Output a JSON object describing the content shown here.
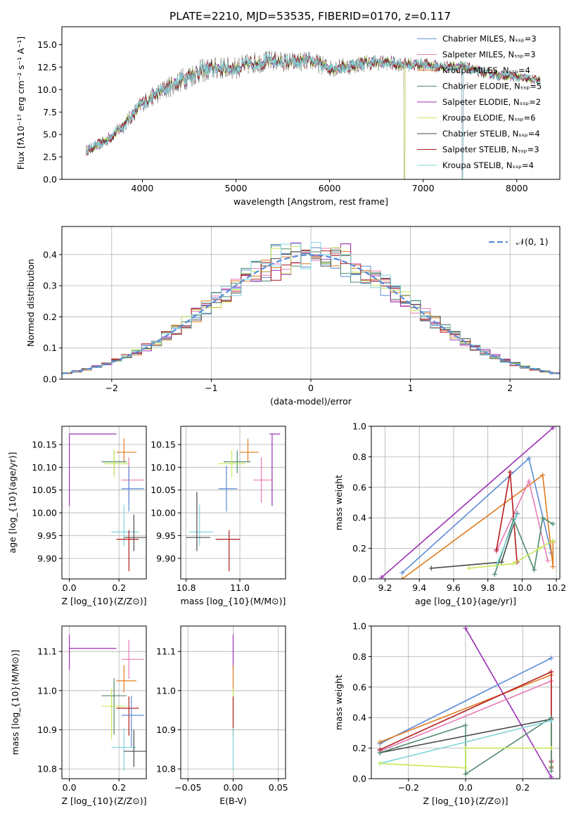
{
  "figure": {
    "title": "PLATE=2210, MJD=53535, FIBERID=0170, z=0.117"
  },
  "chart_data": [
    {
      "id": "spectrum",
      "type": "line",
      "xlabel": "wavelength [Angstrom, rest frame]",
      "ylabel": "Flux [f$_\\lambda$10$^{-17}$ erg cm$^{-2}$ s$^{-1}$ A$^{-1}$]",
      "xlim": [
        3140,
        8460
      ],
      "ylim": [
        0,
        17
      ],
      "xticks": [
        4000,
        5000,
        6000,
        7000,
        8000
      ],
      "yticks": [
        0.0,
        2.5,
        5.0,
        7.5,
        10.0,
        12.5,
        15.0
      ],
      "grid": false,
      "legend_placement": "top-right",
      "continuum_points": [
        [
          3400,
          3.2
        ],
        [
          3600,
          4.2
        ],
        [
          3800,
          6.0
        ],
        [
          4000,
          8.5
        ],
        [
          4200,
          9.8
        ],
        [
          4400,
          11.0
        ],
        [
          4600,
          12.0
        ],
        [
          4800,
          12.4
        ],
        [
          5000,
          12.4
        ],
        [
          5200,
          13.0
        ],
        [
          5400,
          13.2
        ],
        [
          5600,
          13.0
        ],
        [
          5800,
          13.2
        ],
        [
          6000,
          12.4
        ],
        [
          6200,
          12.6
        ],
        [
          6400,
          13.0
        ],
        [
          6600,
          13.0
        ],
        [
          6800,
          12.8
        ],
        [
          7000,
          12.8
        ],
        [
          7200,
          12.5
        ],
        [
          7400,
          12.6
        ],
        [
          7600,
          12.0
        ],
        [
          7800,
          11.6
        ],
        [
          8000,
          11.4
        ],
        [
          8250,
          11.0
        ]
      ],
      "noise_amplitude": [
        [
          3400,
          0.6
        ],
        [
          4500,
          1.4
        ],
        [
          5400,
          1.2
        ],
        [
          7000,
          0.8
        ],
        [
          8250,
          0.5
        ]
      ],
      "model_drops": [
        {
          "model": "Kroupa ELODIE",
          "x": 6800
        },
        {
          "model": "Salpeter ELODIE",
          "x": 6800
        },
        {
          "model": "Kroupa STELIB",
          "x": 7420
        },
        {
          "model": "Salpeter STELIB",
          "x": 7420
        }
      ],
      "series": [
        {
          "name": "Chabrier MILES, N$_{SSP}$=3",
          "color": "#5b8bd6"
        },
        {
          "name": "Salpeter MILES, N$_{SSP}$=3",
          "color": "#e87bb5"
        },
        {
          "name": "Kroupa MILES, N$_{SSP}$=4",
          "color": "#e07b20"
        },
        {
          "name": "Chabrier ELODIE, N$_{SSP}$=5",
          "color": "#4f8a6b"
        },
        {
          "name": "Salpeter ELODIE, N$_{SSP}$=2",
          "color": "#9b30b4"
        },
        {
          "name": "Kroupa ELODIE, N$_{SSP}$=6",
          "color": "#c7e85a"
        },
        {
          "name": "Chabrier STELIB, N$_{SSP}$=4",
          "color": "#4a4a4a"
        },
        {
          "name": "Salpeter STELIB, N$_{SSP}$=3",
          "color": "#b31b1b"
        },
        {
          "name": "Kroupa STELIB, N$_{SSP}$=4",
          "color": "#7fd4dd"
        }
      ]
    },
    {
      "id": "residuals",
      "type": "line",
      "xlabel": "(data-model)/error",
      "ylabel": "Normed distribution",
      "xlim": [
        -2.5,
        2.5
      ],
      "ylim": [
        0,
        0.49
      ],
      "xticks": [
        -2,
        -1,
        0,
        1,
        2
      ],
      "yticks": [
        0.0,
        0.1,
        0.2,
        0.3,
        0.4
      ],
      "grid": true,
      "legend_placement": "top-right",
      "reference_curve": {
        "name": "$\\mathcal{N}(0,1)$",
        "color": "#5b8bd6",
        "style": "dashed"
      },
      "bin_width": 0.1,
      "series_colors": [
        "#5b8bd6",
        "#e87bb5",
        "#e07b20",
        "#4f8a6b",
        "#9b30b4",
        "#c7e85a",
        "#4a4a4a",
        "#b31b1b",
        "#7fd4dd"
      ]
    },
    {
      "id": "age-vs-Z",
      "type": "scatter",
      "xlabel": "Z [log$_{10}$(Z/Z$_\\odot$)]",
      "ylabel": "age  [log$_{10}$(age/yr)]",
      "xlim": [
        -0.03,
        0.31
      ],
      "ylim": [
        9.855,
        10.19
      ],
      "xticks": [
        0.0,
        0.2
      ],
      "yticks": [
        9.9,
        9.95,
        10.0,
        10.05,
        10.1,
        10.15
      ],
      "grid": true,
      "points": [
        {
          "color": "#9b30b4",
          "x": 0.0,
          "xerr": [
            0.0,
            0.19
          ],
          "y": 10.173,
          "yerr": [
            0.158,
            0.0
          ]
        },
        {
          "color": "#e07b20",
          "x": 0.22,
          "xerr": [
            0.03,
            0.05
          ],
          "y": 10.133,
          "yerr": [
            0.02,
            0.03
          ]
        },
        {
          "color": "#4f8a6b",
          "x": 0.18,
          "xerr": [
            0.05,
            0.05
          ],
          "y": 10.112,
          "yerr": [
            0.025,
            0.025
          ]
        },
        {
          "color": "#c7e85a",
          "x": 0.18,
          "xerr": [
            0.04,
            0.06
          ],
          "y": 10.108,
          "yerr": [
            0.03,
            0.03
          ]
        },
        {
          "color": "#e87bb5",
          "x": 0.24,
          "xerr": [
            0.03,
            0.06
          ],
          "y": 10.072,
          "yerr": [
            0.05,
            0.05
          ]
        },
        {
          "color": "#5b8bd6",
          "x": 0.24,
          "xerr": [
            0.03,
            0.06
          ],
          "y": 10.053,
          "yerr": [
            0.05,
            0.05
          ]
        },
        {
          "color": "#7fd4dd",
          "x": 0.22,
          "xerr": [
            0.05,
            0.06
          ],
          "y": 9.958,
          "yerr": [
            0.03,
            0.06
          ]
        },
        {
          "color": "#4a4a4a",
          "x": 0.26,
          "xerr": [
            0.04,
            0.05
          ],
          "y": 9.946,
          "yerr": [
            0.03,
            0.05
          ]
        },
        {
          "color": "#b31b1b",
          "x": 0.24,
          "xerr": [
            0.05,
            0.04
          ],
          "y": 9.942,
          "yerr": [
            0.07,
            0.02
          ]
        }
      ]
    },
    {
      "id": "age-vs-mass",
      "type": "scatter",
      "xlabel": "mass [log$_{10}$(M/M$_\\odot$)]",
      "ylabel": "",
      "xlim": [
        10.78,
        11.17
      ],
      "ylim": [
        9.855,
        10.19
      ],
      "xticks": [
        10.8,
        11.0
      ],
      "yticks": [
        9.9,
        9.95,
        10.0,
        10.05,
        10.1,
        10.15
      ],
      "grid": true,
      "points": [
        {
          "color": "#9b30b4",
          "x": 11.12,
          "xerr": [
            0.01,
            0.03
          ],
          "y": 10.173,
          "yerr": [
            0.158,
            0.0
          ]
        },
        {
          "color": "#e07b20",
          "x": 11.03,
          "xerr": [
            0.03,
            0.04
          ],
          "y": 10.133,
          "yerr": [
            0.02,
            0.03
          ]
        },
        {
          "color": "#4f8a6b",
          "x": 10.99,
          "xerr": [
            0.05,
            0.05
          ],
          "y": 10.112,
          "yerr": [
            0.025,
            0.025
          ]
        },
        {
          "color": "#c7e85a",
          "x": 10.97,
          "xerr": [
            0.05,
            0.05
          ],
          "y": 10.108,
          "yerr": [
            0.03,
            0.03
          ]
        },
        {
          "color": "#e87bb5",
          "x": 11.08,
          "xerr": [
            0.03,
            0.04
          ],
          "y": 10.072,
          "yerr": [
            0.05,
            0.05
          ]
        },
        {
          "color": "#5b8bd6",
          "x": 10.95,
          "xerr": [
            0.03,
            0.04
          ],
          "y": 10.053,
          "yerr": [
            0.05,
            0.05
          ]
        },
        {
          "color": "#7fd4dd",
          "x": 10.85,
          "xerr": [
            0.04,
            0.05
          ],
          "y": 9.958,
          "yerr": [
            0.03,
            0.06
          ]
        },
        {
          "color": "#4a4a4a",
          "x": 10.84,
          "xerr": [
            0.04,
            0.05
          ],
          "y": 9.946,
          "yerr": [
            0.03,
            0.1
          ]
        },
        {
          "color": "#b31b1b",
          "x": 10.96,
          "xerr": [
            0.05,
            0.04
          ],
          "y": 9.942,
          "yerr": [
            0.07,
            0.02
          ]
        }
      ]
    },
    {
      "id": "weight-vs-age",
      "type": "line",
      "xlabel": "age  [log$_{10}$(age/yr)]",
      "ylabel": "mass weight",
      "xlim": [
        9.12,
        10.22
      ],
      "ylim": [
        0.0,
        1.0
      ],
      "xticks": [
        9.2,
        9.4,
        9.6,
        9.8,
        10.0,
        10.2
      ],
      "yticks": [
        0.0,
        0.2,
        0.4,
        0.6,
        0.8,
        1.0
      ],
      "grid": true,
      "series": [
        {
          "color": "#9b30b4",
          "points": [
            [
              9.18,
              0.01
            ],
            [
              10.18,
              0.99
            ]
          ]
        },
        {
          "color": "#5b8bd6",
          "points": [
            [
              9.3,
              0.04
            ],
            [
              10.04,
              0.79
            ],
            [
              10.17,
              0.17
            ]
          ]
        },
        {
          "color": "#e07b20",
          "points": [
            [
              9.3,
              0.0
            ],
            [
              10.12,
              0.68
            ],
            [
              10.18,
              0.08
            ],
            [
              10.18,
              0.24
            ]
          ]
        },
        {
          "color": "#e87bb5",
          "points": [
            [
              9.85,
              0.18
            ],
            [
              10.04,
              0.64
            ],
            [
              10.15,
              0.12
            ]
          ]
        },
        {
          "color": "#b31b1b",
          "points": [
            [
              9.85,
              0.19
            ],
            [
              9.93,
              0.7
            ],
            [
              9.97,
              0.11
            ]
          ]
        },
        {
          "color": "#4a4a4a",
          "points": [
            [
              9.47,
              0.07
            ],
            [
              9.88,
              0.11
            ],
            [
              9.97,
              0.43
            ]
          ]
        },
        {
          "color": "#4f8a6b",
          "points": [
            [
              9.84,
              0.03
            ],
            [
              9.95,
              0.39
            ],
            [
              10.07,
              0.06
            ],
            [
              10.12,
              0.4
            ],
            [
              10.18,
              0.36
            ]
          ]
        },
        {
          "color": "#7fd4dd",
          "points": [
            [
              9.85,
              0.09
            ],
            [
              9.97,
              0.42
            ]
          ]
        },
        {
          "color": "#c7e85a",
          "points": [
            [
              9.69,
              0.07
            ],
            [
              9.95,
              0.1
            ],
            [
              10.1,
              0.2
            ],
            [
              10.18,
              0.25
            ]
          ]
        }
      ]
    },
    {
      "id": "mass-vs-Z",
      "type": "scatter",
      "xlabel": "Z [log$_{10}$(Z/Z$_\\odot$)]",
      "ylabel": "mass [log$_{10}$(M/M$_\\odot$)]",
      "xlim": [
        -0.03,
        0.31
      ],
      "ylim": [
        10.775,
        11.165
      ],
      "xticks": [
        0.0,
        0.2
      ],
      "yticks": [
        10.8,
        10.9,
        11.0,
        11.1
      ],
      "grid": true,
      "points": [
        {
          "color": "#9b30b4",
          "x": 0.0,
          "xerr": [
            0.0,
            0.19
          ],
          "y": 11.108,
          "yerr": [
            0.055,
            0.035
          ]
        },
        {
          "color": "#e87bb5",
          "x": 0.24,
          "xerr": [
            0.03,
            0.06
          ],
          "y": 11.08,
          "yerr": [
            0.05,
            0.05
          ]
        },
        {
          "color": "#e07b20",
          "x": 0.22,
          "xerr": [
            0.03,
            0.05
          ],
          "y": 11.025,
          "yerr": [
            0.03,
            0.04
          ]
        },
        {
          "color": "#4f8a6b",
          "x": 0.18,
          "xerr": [
            0.05,
            0.05
          ],
          "y": 10.987,
          "yerr": [
            0.1,
            0.045
          ]
        },
        {
          "color": "#c7e85a",
          "x": 0.17,
          "xerr": [
            0.04,
            0.06
          ],
          "y": 10.96,
          "yerr": [
            0.085,
            0.045
          ]
        },
        {
          "color": "#b31b1b",
          "x": 0.24,
          "xerr": [
            0.05,
            0.04
          ],
          "y": 10.955,
          "yerr": [
            0.07,
            0.03
          ]
        },
        {
          "color": "#5b8bd6",
          "x": 0.25,
          "xerr": [
            0.04,
            0.05
          ],
          "y": 10.937,
          "yerr": [
            0.08,
            0.05
          ]
        },
        {
          "color": "#7fd4dd",
          "x": 0.22,
          "xerr": [
            0.05,
            0.05
          ],
          "y": 10.855,
          "yerr": [
            0.06,
            0.05
          ]
        },
        {
          "color": "#4a4a4a",
          "x": 0.26,
          "xerr": [
            0.04,
            0.05
          ],
          "y": 10.845,
          "yerr": [
            0.04,
            0.055
          ]
        }
      ]
    },
    {
      "id": "mass-vs-ebv",
      "type": "scatter",
      "xlabel": "E(B-V)",
      "ylabel": "",
      "xlim": [
        -0.058,
        0.058
      ],
      "ylim": [
        10.775,
        11.165
      ],
      "xticks": [
        -0.05,
        0.0,
        0.05
      ],
      "yticks": [
        10.8,
        10.9,
        11.0,
        11.1
      ],
      "grid": true,
      "points": [
        {
          "color": "#9b30b4",
          "x": 0.0,
          "xerr": [
            0.0,
            0.0
          ],
          "y": 11.108,
          "yerr": [
            0.055,
            0.035
          ]
        },
        {
          "color": "#e07b20",
          "x": 0.0,
          "xerr": [
            0.0,
            0.0
          ],
          "y": 11.025,
          "yerr": [
            0.03,
            0.04
          ]
        },
        {
          "color": "#c7e85a",
          "x": 0.0,
          "xerr": [
            0.0,
            0.0
          ],
          "y": 10.96,
          "yerr": [
            0.085,
            0.045
          ]
        },
        {
          "color": "#b31b1b",
          "x": 0.0,
          "xerr": [
            0.0,
            0.0
          ],
          "y": 10.955,
          "yerr": [
            0.07,
            0.03
          ]
        },
        {
          "color": "#7fd4dd",
          "x": 0.0,
          "xerr": [
            0.0,
            0.0
          ],
          "y": 10.855,
          "yerr": [
            0.06,
            0.05
          ]
        }
      ]
    },
    {
      "id": "weight-vs-Z",
      "type": "line",
      "xlabel": "Z [log$_{10}$(Z/Z$_\\odot$)]",
      "ylabel": "mass weight",
      "xlim": [
        -0.33,
        0.33
      ],
      "ylim": [
        0.0,
        1.0
      ],
      "xticks": [
        -0.2,
        0.0,
        0.2
      ],
      "yticks": [
        0.0,
        0.2,
        0.4,
        0.6,
        0.8,
        1.0
      ],
      "grid": true,
      "series": [
        {
          "color": "#9b30b4",
          "points": [
            [
              0.0,
              0.985
            ],
            [
              0.3,
              0.01
            ]
          ]
        },
        {
          "color": "#5b8bd6",
          "points": [
            [
              -0.3,
              0.23
            ],
            [
              0.3,
              0.79
            ]
          ]
        },
        {
          "color": "#e07b20",
          "points": [
            [
              -0.3,
              0.24
            ],
            [
              0.3,
              0.68
            ],
            [
              0.3,
              0.08
            ]
          ]
        },
        {
          "color": "#e87bb5",
          "points": [
            [
              -0.3,
              0.18
            ],
            [
              0.3,
              0.64
            ],
            [
              0.3,
              0.12
            ]
          ]
        },
        {
          "color": "#b31b1b",
          "points": [
            [
              -0.3,
              0.19
            ],
            [
              0.3,
              0.7
            ],
            [
              0.3,
              0.11
            ]
          ]
        },
        {
          "color": "#4a4a4a",
          "points": [
            [
              -0.3,
              0.17
            ],
            [
              0.3,
              0.39
            ],
            [
              0.3,
              0.07
            ]
          ]
        },
        {
          "color": "#4f8a6b",
          "points": [
            [
              -0.3,
              0.17
            ],
            [
              0.0,
              0.35
            ],
            [
              0.0,
              0.03
            ],
            [
              0.3,
              0.4
            ],
            [
              0.3,
              0.05
            ]
          ]
        },
        {
          "color": "#7fd4dd",
          "points": [
            [
              -0.3,
              0.1
            ],
            [
              0.3,
              0.38
            ]
          ]
        },
        {
          "color": "#c7e85a",
          "points": [
            [
              -0.3,
              0.1
            ],
            [
              0.0,
              0.07
            ],
            [
              0.0,
              0.2
            ],
            [
              0.3,
              0.2
            ]
          ]
        }
      ]
    }
  ]
}
